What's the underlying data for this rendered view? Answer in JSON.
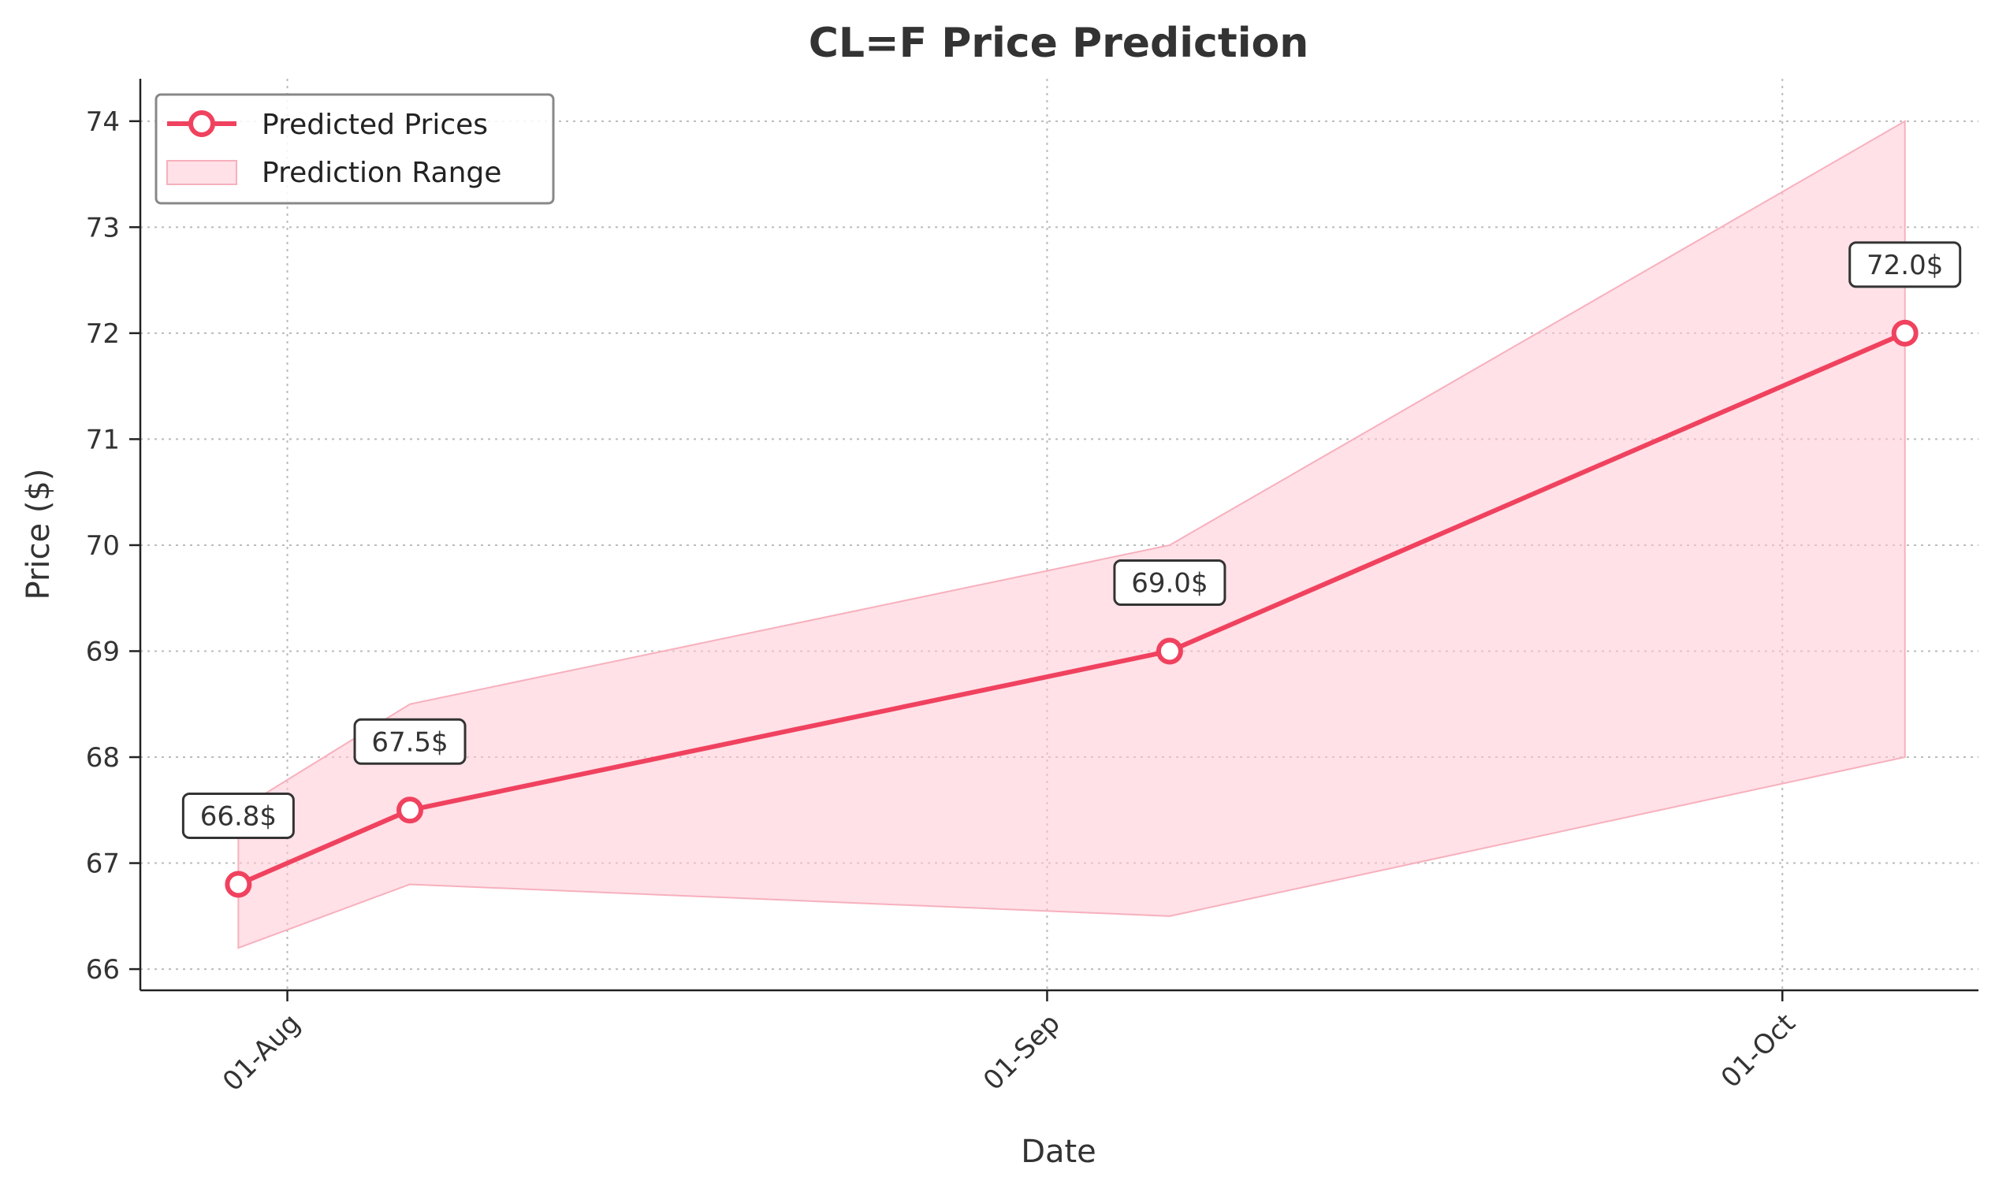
{
  "chart_data": {
    "type": "line",
    "title": "CL=F Price Prediction",
    "xlabel": "Date",
    "ylabel": "Price ($)",
    "x_tick_labels": [
      "01-Aug",
      "01-Sep",
      "01-Oct"
    ],
    "x_tick_dates": [
      "2024-08-01",
      "2024-09-01",
      "2024-10-01"
    ],
    "x_range": [
      "2024-07-26",
      "2024-10-09"
    ],
    "ylim": [
      65.8,
      74.4
    ],
    "y_ticks": [
      66,
      67,
      68,
      69,
      70,
      71,
      72,
      73,
      74
    ],
    "grid": true,
    "legend_position": "top-left",
    "colors": {
      "line": "#f0425f",
      "band": "#ffc9d3",
      "band_edge": "#f7b0bd"
    },
    "series": [
      {
        "name": "Predicted Prices",
        "x": [
          "2024-07-30",
          "2024-08-06",
          "2024-09-06",
          "2024-10-06"
        ],
        "values": [
          66.8,
          67.5,
          69.0,
          72.0
        ],
        "point_labels": [
          "66.8$",
          "67.5$",
          "69.0$",
          "72.0$"
        ]
      },
      {
        "name": "Prediction Range",
        "x": [
          "2024-07-30",
          "2024-08-06",
          "2024-09-06",
          "2024-10-06"
        ],
        "lower": [
          66.2,
          66.8,
          66.5,
          68.0
        ],
        "upper": [
          67.5,
          68.5,
          70.0,
          74.0
        ]
      }
    ]
  }
}
